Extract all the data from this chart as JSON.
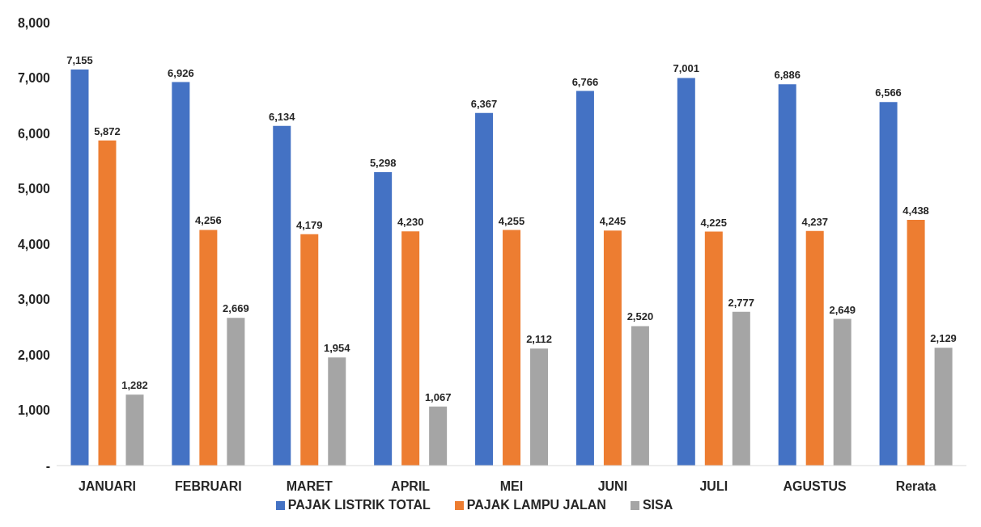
{
  "chart_data": {
    "type": "bar",
    "categories": [
      "JANUARI",
      "FEBRUARI",
      "MARET",
      "APRIL",
      "MEI",
      "JUNI",
      "JULI",
      "AGUSTUS",
      "Rerata"
    ],
    "series": [
      {
        "name": "PAJAK LISTRIK TOTAL",
        "color": "#4472c4",
        "values": [
          7155,
          6926,
          6134,
          5298,
          6367,
          6766,
          7001,
          6886,
          6566
        ],
        "value_labels": [
          "7,155",
          "6,926",
          "6,134",
          "5,298",
          "6,367",
          "6,766",
          "7,001",
          "6,886",
          "6,566"
        ]
      },
      {
        "name": "PAJAK LAMPU JALAN",
        "color": "#ed7d31",
        "values": [
          5872,
          4256,
          4179,
          4230,
          4255,
          4245,
          4225,
          4237,
          4438
        ],
        "value_labels": [
          "5,872",
          "4,256",
          "4,179",
          "4,230",
          "4,255",
          "4,245",
          "4,225",
          "4,237",
          "4,438"
        ]
      },
      {
        "name": "SISA",
        "color": "#a5a5a5",
        "values": [
          1282,
          2669,
          1954,
          1067,
          2112,
          2520,
          2777,
          2649,
          2129
        ],
        "value_labels": [
          "1,282",
          "2,669",
          "1,954",
          "1,067",
          "2,112",
          "2,520",
          "2,777",
          "2,649",
          "2,129"
        ]
      }
    ],
    "ylim": [
      0,
      8000
    ],
    "yticks": [
      {
        "value": 0,
        "label": "-"
      },
      {
        "value": 1000,
        "label": "1,000"
      },
      {
        "value": 2000,
        "label": "2,000"
      },
      {
        "value": 3000,
        "label": "3,000"
      },
      {
        "value": 4000,
        "label": "4,000"
      },
      {
        "value": 5000,
        "label": "5,000"
      },
      {
        "value": 6000,
        "label": "6,000"
      },
      {
        "value": 7000,
        "label": "7,000"
      },
      {
        "value": 8000,
        "label": "8,000"
      }
    ],
    "grid": false,
    "legend": "bottom"
  }
}
